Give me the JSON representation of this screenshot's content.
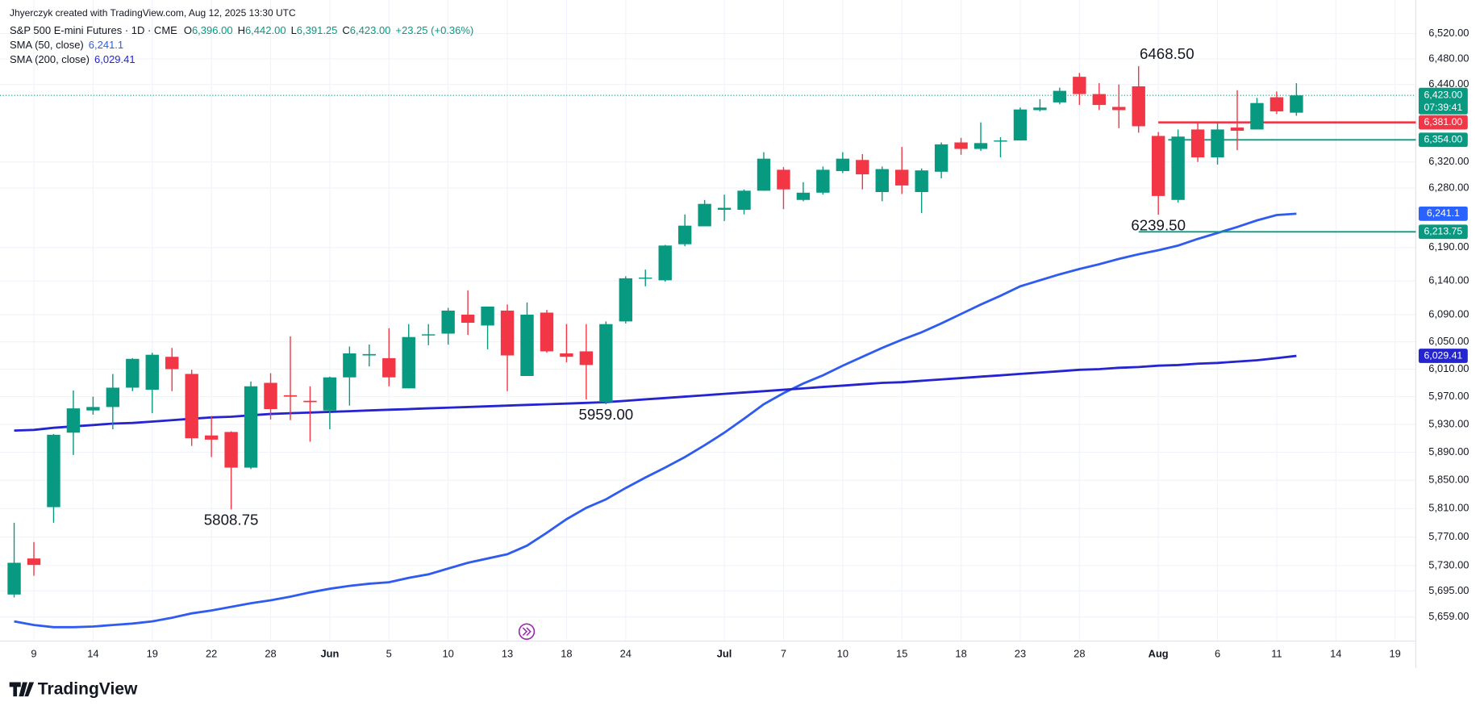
{
  "header": {
    "credit": "Jhyerczyk created with TradingView.com, Aug 12, 2025 13:30 UTC",
    "symbol": "S&P 500 E-mini Futures · 1D · CME",
    "ohlc": [
      {
        "key": "O",
        "value": "6,396.00"
      },
      {
        "key": "H",
        "value": "6,442.00"
      },
      {
        "key": "L",
        "value": "6,391.25"
      },
      {
        "key": "C",
        "value": "6,423.00"
      }
    ],
    "change": "+23.25 (+0.36%)"
  },
  "footer": {
    "brand": "TradingView"
  },
  "chart_data": {
    "type": "candlestick",
    "log_scale": true,
    "grid": true,
    "up_color": "#089981",
    "down_color": "#f23645",
    "categories": [
      null,
      "9",
      null,
      null,
      "14",
      null,
      null,
      "19",
      null,
      null,
      "22",
      null,
      null,
      "28",
      null,
      null,
      "Jun",
      null,
      null,
      "5",
      null,
      null,
      "10",
      null,
      null,
      "13",
      null,
      null,
      "18",
      null,
      null,
      "24",
      null,
      null,
      null,
      null,
      "Jul",
      null,
      null,
      "7",
      null,
      null,
      "10",
      null,
      null,
      "15",
      null,
      null,
      "18",
      null,
      null,
      "23",
      null,
      null,
      "28",
      null,
      null,
      null,
      "Aug",
      null,
      null,
      "6",
      null,
      null,
      "11",
      null,
      null,
      "14",
      null,
      null,
      "19"
    ],
    "open": [
      5690,
      5740,
      5812,
      5918,
      5950,
      5955,
      5983,
      5980,
      6028,
      6003,
      5914,
      5919,
      5868,
      5990,
      5972,
      5964,
      5950,
      5998,
      6030,
      6026,
      5982,
      6060,
      6062,
      6090,
      6074,
      6096,
      6000,
      6093,
      6033,
      6036,
      5962,
      6080,
      6144,
      6141,
      6195,
      6222,
      6247,
      6247,
      6276,
      6308,
      6262,
      6273,
      6306,
      6323,
      6274,
      6308,
      6274,
      6305,
      6350,
      6340,
      6352,
      6353,
      6400,
      6412,
      6452,
      6425,
      6405,
      6437,
      6360,
      6262,
      6370,
      6327,
      6373,
      6370,
      6420,
      6396,
      null,
      null,
      null,
      null,
      null
    ],
    "high": [
      5790,
      5763,
      5916,
      5979,
      5970,
      6003,
      6026,
      6034,
      6041,
      6009,
      5942,
      5920,
      5992,
      6004,
      6058,
      5985,
      5999,
      6043,
      6046,
      6070,
      6076,
      6076,
      6100,
      6126,
      6102,
      6105,
      6108,
      6097,
      6076,
      6076,
      6080,
      6147,
      6157,
      6194,
      6240,
      6262,
      6270,
      6278,
      6335,
      6312,
      6289,
      6313,
      6335,
      6332,
      6313,
      6343,
      6310,
      6350,
      6357,
      6381,
      6358,
      6404,
      6417,
      6435,
      6458,
      6442,
      6440,
      6468.5,
      6366,
      6370,
      6380,
      6380,
      6431,
      6419,
      6429,
      6442,
      null,
      null,
      null,
      null,
      null
    ],
    "low": [
      5686,
      5716,
      5790,
      5886,
      5944,
      5923,
      5978,
      5946,
      5978,
      5899,
      5883,
      5808.75,
      5866,
      5937,
      5936,
      5905,
      5923,
      5957,
      6014,
      5985,
      5982,
      6045,
      6046,
      6060,
      6039,
      5978,
      6000,
      6034,
      6020,
      5966,
      5959,
      6077,
      6132,
      6139,
      6192,
      6222,
      6230,
      6240,
      6276,
      6248,
      6260,
      6270,
      6303,
      6278,
      6260,
      6271,
      6242,
      6295,
      6331,
      6337,
      6327,
      6353,
      6398,
      6409,
      6408,
      6400,
      6372,
      6365,
      6239.5,
      6258,
      6320,
      6316,
      6338,
      6370,
      6394,
      6391.25,
      null,
      null,
      null,
      null,
      null
    ],
    "close": [
      5734,
      5731,
      5915,
      5953,
      5955,
      5983,
      6025,
      6031,
      6010,
      5910,
      5908,
      5868,
      5985,
      5952,
      5970,
      5962,
      5998,
      6033,
      6032,
      5998,
      6057,
      6061,
      6096,
      6078,
      6102,
      6030,
      6090,
      6036,
      6028,
      6016,
      6076,
      6144,
      6145,
      6193,
      6223,
      6256,
      6250,
      6276,
      6325,
      6278,
      6273,
      6308,
      6325,
      6301,
      6309,
      6284,
      6307,
      6347,
      6340,
      6349,
      6353,
      6401,
      6404,
      6430,
      6425,
      6408,
      6400,
      6375,
      6268,
      6359,
      6327,
      6370,
      6368,
      6411,
      6398,
      6423,
      null,
      null,
      null,
      null,
      null
    ],
    "series": [
      {
        "name": "SMA (50, close)",
        "color": "#2f5bf0",
        "marker_color": "#2962ff",
        "value_label": "6,241.1",
        "values": [
          5653,
          5648,
          5645,
          5645,
          5646,
          5648,
          5650,
          5653,
          5658,
          5664,
          5668,
          5673,
          5678,
          5682,
          5687,
          5693,
          5698,
          5702,
          5705,
          5707,
          5713,
          5718,
          5726,
          5734,
          5740,
          5746,
          5758,
          5776,
          5795,
          5811,
          5823,
          5839,
          5854,
          5868,
          5883,
          5900,
          5918,
          5938,
          5959,
          5975,
          5989,
          6001,
          6015,
          6028,
          6041,
          6053,
          6064,
          6077,
          6091,
          6105,
          6118,
          6132,
          6141,
          6150,
          6158,
          6165,
          6173,
          6180,
          6186,
          6193,
          6203,
          6212,
          6221,
          6231,
          6239,
          6241.1,
          null,
          null,
          null,
          null,
          null
        ]
      },
      {
        "name": "SMA (200, close)",
        "color": "#2424d0",
        "marker_color": "#2424d0",
        "value_label": "6,029.41",
        "values": [
          5921,
          5922,
          5925,
          5927,
          5929,
          5931,
          5932,
          5934,
          5936,
          5938,
          5940,
          5941,
          5943,
          5945,
          5946,
          5947,
          5948,
          5949,
          5950,
          5951,
          5952,
          5953,
          5954,
          5955,
          5956,
          5957,
          5958,
          5959,
          5960,
          5961,
          5962,
          5964,
          5966,
          5968,
          5970,
          5972,
          5974,
          5976,
          5978,
          5980,
          5982,
          5984,
          5986,
          5988,
          5990,
          5991,
          5993,
          5995,
          5997,
          5999,
          6001,
          6003,
          6005,
          6007,
          6009,
          6010,
          6012,
          6013,
          6015,
          6016,
          6018,
          6019,
          6021,
          6023,
          6026,
          6029.41,
          null,
          null,
          null,
          null,
          null
        ]
      }
    ],
    "price_lines": [
      {
        "value": 6423,
        "label": "6,423.00",
        "color": "#089981",
        "timer": "07:39:41"
      },
      {
        "value": 6381,
        "label": "6,381.00",
        "color": "#f23645"
      },
      {
        "value": 6354,
        "label": "6,354.00",
        "color": "#089981"
      },
      {
        "value": 6213.75,
        "label": "6,213.75",
        "color": "#089981"
      }
    ],
    "annotations": [
      {
        "label": "6468.50",
        "value": 6468.5
      },
      {
        "label": "6239.50",
        "value": 6239.5
      },
      {
        "label": "5959.00",
        "value": 5959
      },
      {
        "label": "5808.75",
        "value": 5808.75
      }
    ],
    "ylim": [
      5626,
      6543
    ],
    "yticks": [
      {
        "value": 6520,
        "label": "6,520.00"
      },
      {
        "value": 6480,
        "label": "6,480.00"
      },
      {
        "value": 6440,
        "label": "6,440.00"
      },
      {
        "value": 6320,
        "label": "6,320.00"
      },
      {
        "value": 6280,
        "label": "6,280.00"
      },
      {
        "value": 6190,
        "label": "6,190.00"
      },
      {
        "value": 6140,
        "label": "6,140.00"
      },
      {
        "value": 6090,
        "label": "6,090.00"
      },
      {
        "value": 6050,
        "label": "6,050.00"
      },
      {
        "value": 6010,
        "label": "6,010.00"
      },
      {
        "value": 5970,
        "label": "5,970.00"
      },
      {
        "value": 5930,
        "label": "5,930.00"
      },
      {
        "value": 5890,
        "label": "5,890.00"
      },
      {
        "value": 5850,
        "label": "5,850.00"
      },
      {
        "value": 5810,
        "label": "5,810.00"
      },
      {
        "value": 5770,
        "label": "5,770.00"
      },
      {
        "value": 5730,
        "label": "5,730.00"
      },
      {
        "value": 5695,
        "label": "5,695.00"
      },
      {
        "value": 5659,
        "label": "5,659.00"
      }
    ]
  }
}
